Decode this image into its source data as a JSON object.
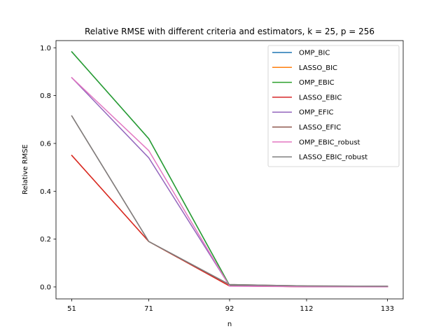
{
  "chart_data": {
    "type": "line",
    "title": "Relative RMSE with different criteria and estimators, k = 25, p = 256",
    "xlabel": "n",
    "ylabel": "Relative RMSE",
    "x": [
      51,
      71,
      92,
      112,
      133
    ],
    "xticks": [
      "51",
      "71",
      "92",
      "112",
      "133"
    ],
    "yticks": [
      "0.0",
      "0.2",
      "0.4",
      "0.6",
      "0.8",
      "1.0"
    ],
    "xlim": [
      46.9,
      137.1
    ],
    "ylim": [
      -0.05,
      1.03
    ],
    "legend_position": "upper-right",
    "grid": false,
    "series": [
      {
        "name": "OMP_BIC",
        "color": "#1f77b4",
        "values": [
          0.983,
          0.62,
          0.006,
          0.002,
          0.002
        ]
      },
      {
        "name": "LASSO_BIC",
        "color": "#ff7f0e",
        "values": [
          0.55,
          0.19,
          0.004,
          0.001,
          0.001
        ]
      },
      {
        "name": "OMP_EBIC",
        "color": "#2ca02c",
        "values": [
          0.983,
          0.62,
          0.006,
          0.002,
          0.002
        ]
      },
      {
        "name": "LASSO_EBIC",
        "color": "#d62728",
        "values": [
          0.55,
          0.19,
          0.004,
          0.001,
          0.001
        ]
      },
      {
        "name": "OMP_EFIC",
        "color": "#9467bd",
        "values": [
          0.875,
          0.54,
          0.004,
          0.001,
          0.001
        ]
      },
      {
        "name": "LASSO_EFIC",
        "color": "#8c564b",
        "values": [
          0.715,
          0.19,
          0.01,
          0.004,
          0.003
        ]
      },
      {
        "name": "OMP_EBIC_robust",
        "color": "#e377c2",
        "values": [
          0.875,
          0.57,
          0.003,
          0.001,
          0.001
        ]
      },
      {
        "name": "LASSO_EBIC_robust",
        "color": "#7f7f7f",
        "values": [
          0.715,
          0.19,
          0.01,
          0.004,
          0.003
        ]
      }
    ]
  }
}
